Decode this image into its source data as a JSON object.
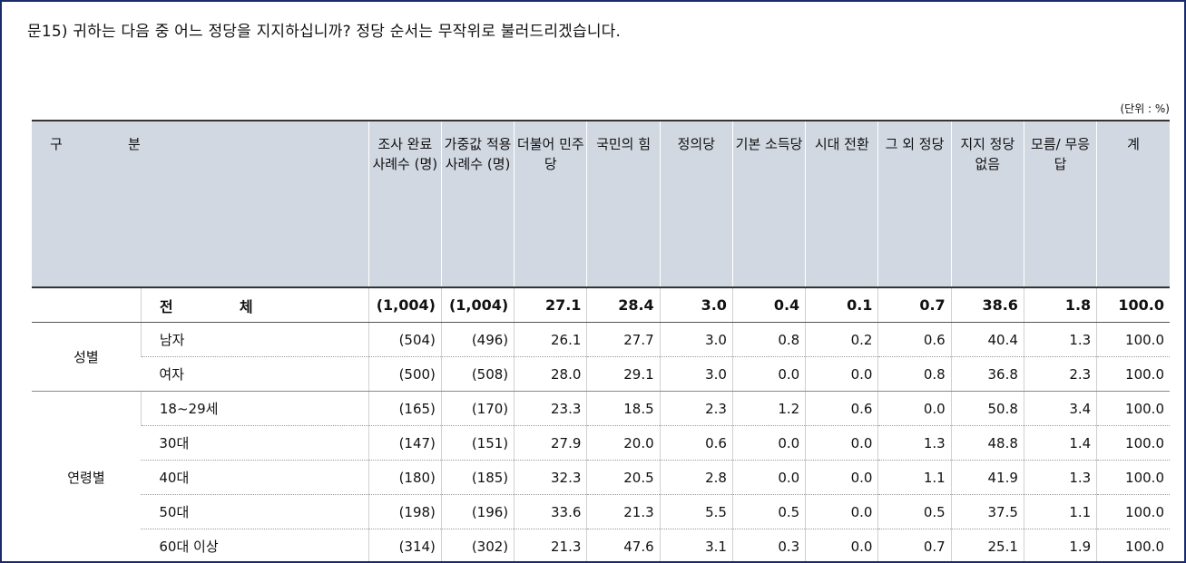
{
  "question": "문15) 귀하는 다음 중 어느 정당을 지지하십니까? 정당 순서는 무작위로 불러드리겠습니다.",
  "unit": "(단위 : %)",
  "headers": {
    "gubun_a": "구",
    "gubun_b": "분",
    "h_cases": "조사 완료 사례수 (명)",
    "h_weighted": "가중값 적용 사례수 (명)",
    "h_dem": "더불어 민주당",
    "h_ppp": "국민의 힘",
    "h_justice": "정의당",
    "h_basic": "기본 소득당",
    "h_transition": "시대 전환",
    "h_other": "그 외 정당",
    "h_none": "지지 정당 없음",
    "h_dk": "모름/ 무응답",
    "h_total": "계"
  },
  "total_row": {
    "label_a": "전",
    "label_b": "체",
    "values": [
      "(1,004)",
      "(1,004)",
      "27.1",
      "28.4",
      "3.0",
      "0.4",
      "0.1",
      "0.7",
      "38.6",
      "1.8",
      "100.0"
    ]
  },
  "groups": {
    "gender": {
      "name": "성별",
      "rows": [
        {
          "label": "남자",
          "values": [
            "(504)",
            "(496)",
            "26.1",
            "27.7",
            "3.0",
            "0.8",
            "0.2",
            "0.6",
            "40.4",
            "1.3",
            "100.0"
          ]
        },
        {
          "label": "여자",
          "values": [
            "(500)",
            "(508)",
            "28.0",
            "29.1",
            "3.0",
            "0.0",
            "0.0",
            "0.8",
            "36.8",
            "2.3",
            "100.0"
          ]
        }
      ]
    },
    "age": {
      "name": "연령별",
      "rows": [
        {
          "label": "18~29세",
          "values": [
            "(165)",
            "(170)",
            "23.3",
            "18.5",
            "2.3",
            "1.2",
            "0.6",
            "0.0",
            "50.8",
            "3.4",
            "100.0"
          ]
        },
        {
          "label": "30대",
          "values": [
            "(147)",
            "(151)",
            "27.9",
            "20.0",
            "0.6",
            "0.0",
            "0.0",
            "1.3",
            "48.8",
            "1.4",
            "100.0"
          ]
        },
        {
          "label": "40대",
          "values": [
            "(180)",
            "(185)",
            "32.3",
            "20.5",
            "2.8",
            "0.0",
            "0.0",
            "1.1",
            "41.9",
            "1.3",
            "100.0"
          ]
        },
        {
          "label": "50대",
          "values": [
            "(198)",
            "(196)",
            "33.6",
            "21.3",
            "5.5",
            "0.5",
            "0.0",
            "0.5",
            "37.5",
            "1.1",
            "100.0"
          ]
        },
        {
          "label": "60대 이상",
          "values": [
            "(314)",
            "(302)",
            "21.3",
            "47.6",
            "3.1",
            "0.3",
            "0.0",
            "0.7",
            "25.1",
            "1.9",
            "100.0"
          ]
        }
      ]
    }
  },
  "colors": {
    "header_bg": "#d2d8e2",
    "border": "#1b2a6b"
  }
}
